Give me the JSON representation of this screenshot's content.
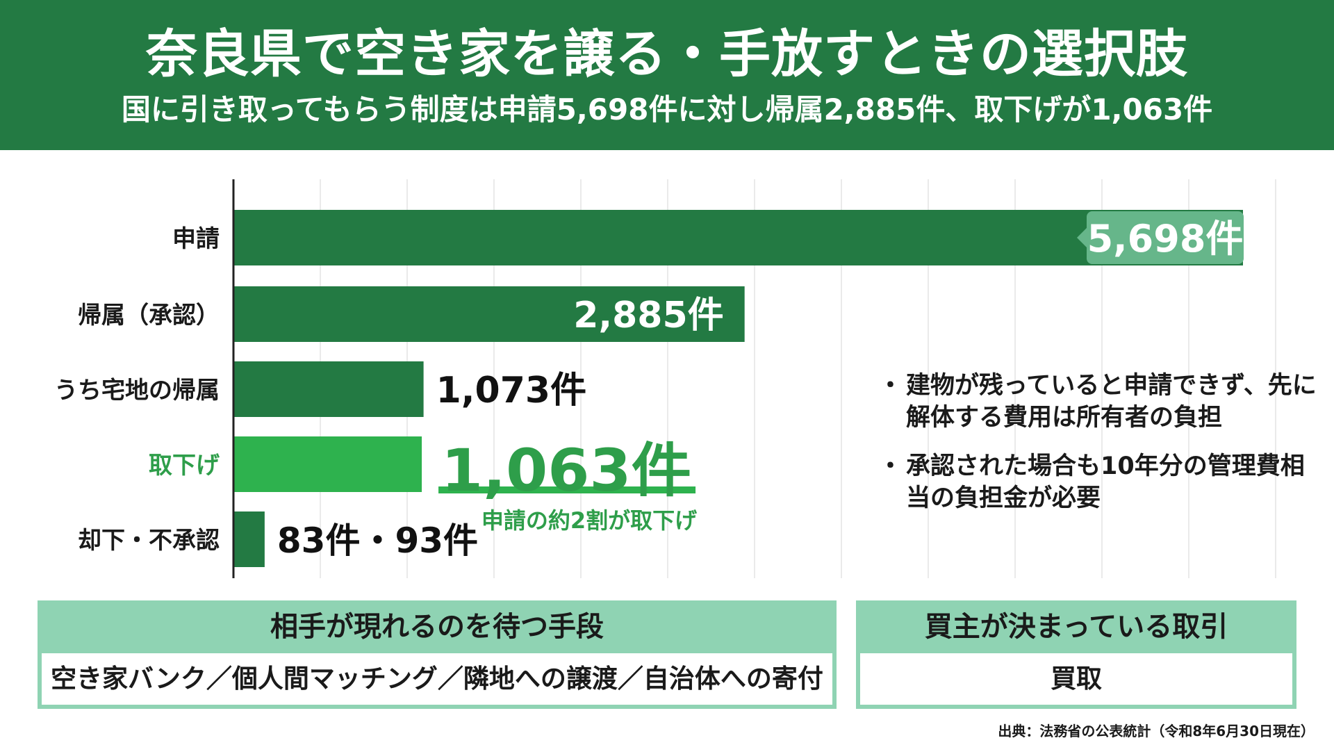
{
  "header": {
    "title": "奈良県で空き家を譲る・手放すときの選択肢",
    "subtitle": "国に引き取ってもらう制度は申請5,698件に対し帰属2,885件、取下げが1,063件"
  },
  "chart_data": {
    "type": "bar",
    "orientation": "horizontal",
    "categories": [
      "申請",
      "帰属（承認）",
      "うち宅地の帰属",
      "取下げ",
      "却下・不承認"
    ],
    "values": [
      5698,
      2885,
      1073,
      1063,
      176
    ],
    "value_labels": [
      "5,698件",
      "2,885件",
      "1,073件",
      "1,063件",
      "83件・93件"
    ],
    "unit": "件",
    "xlim": [
      0,
      6000
    ],
    "grid": true,
    "colors": {
      "bar": "#237a43",
      "highlight": "#2eb24e",
      "callout": "#66b68a",
      "highlight_text": "#2e9e4a",
      "grid": "#e4e4e4",
      "axis": "#222222"
    },
    "highlight_index": 3,
    "annotation": "申請の約2割が取下げ"
  },
  "notes": [
    "建物が残っていると申請できず、先に解体する費用は所有者の負担",
    "承認された場合も10年分の管理費相当の負担金が必要"
  ],
  "panels": {
    "left": {
      "title": "相手が現れるのを待つ手段",
      "body": "空き家バンク／個人間マッチング／隣地への譲渡／自治体への寄付"
    },
    "right": {
      "title": "買主が決まっている取引",
      "body": "買取"
    }
  },
  "source": "出典：法務省の公表統計（令和8年6月30日現在）"
}
